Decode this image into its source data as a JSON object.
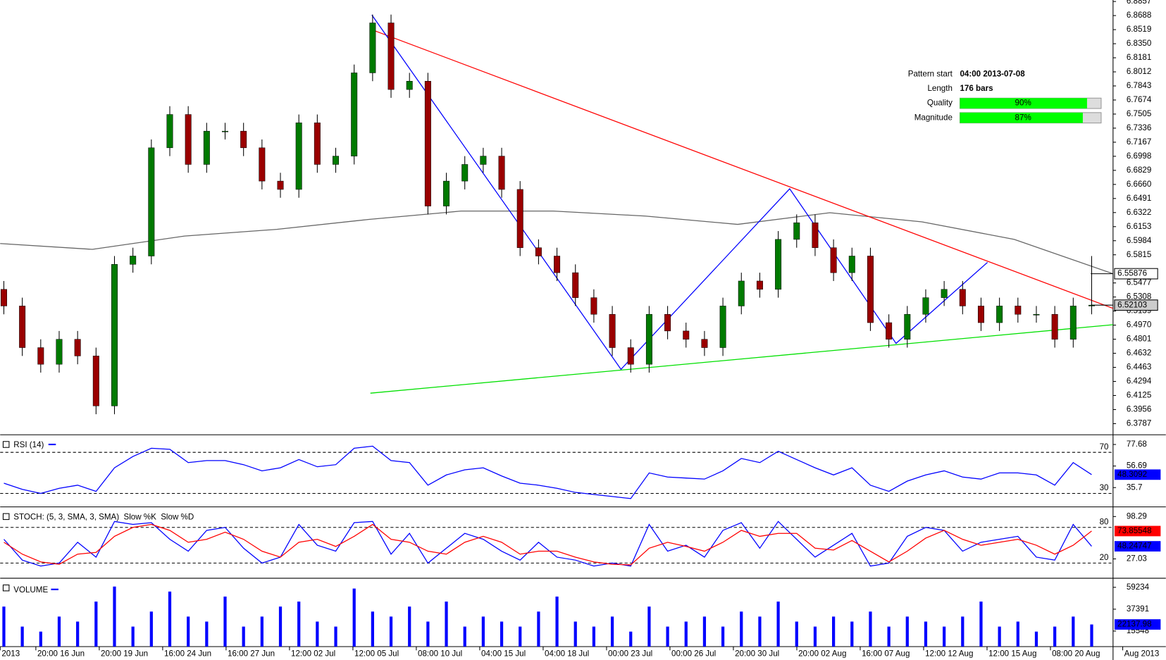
{
  "chart_data": [
    {
      "type": "candlestick",
      "xlim": [
        -0.2,
        60.16
      ],
      "ylim": [
        6.3653,
        6.8875
      ],
      "yticks": [
        6.8857,
        6.8688,
        6.8519,
        {
          "value": 6.835,
          "label": "6.8350"
        },
        6.8181,
        6.8012,
        6.7843,
        6.7674,
        6.7505,
        6.7336,
        6.7167,
        6.6998,
        6.6829,
        {
          "value": 6.666,
          "label": "6.6660"
        },
        6.6491,
        6.6322,
        6.6153,
        6.5984,
        6.5815,
        6.5477,
        6.5308,
        6.5139,
        {
          "value": 6.497,
          "label": "6.4970"
        },
        6.4801,
        6.4632,
        6.4463,
        6.4294,
        6.4125,
        6.3956,
        6.3787
      ],
      "categories": [
        "2013",
        "20:00 16 Jun",
        "20:00 19 Jun",
        "16:00 24 Jun",
        "16:00 27 Jun",
        "12:00 02 Jul",
        "12:00 05 Jul",
        "08:00 10 Jul",
        "04:00 15 Jul",
        "04:00 18 Jul",
        "00:00 23 Jul",
        "00:00 26 Jul",
        "20:00 30 Jul",
        "20:00 02 Aug",
        "16:00 07 Aug",
        "12:00 12 Aug",
        "12:00 15 Aug",
        "08:00 20 Aug",
        "Aug 2013"
      ],
      "open": [
        6.54,
        6.52,
        6.47,
        6.45,
        6.48,
        6.46,
        6.4,
        6.57,
        6.58,
        6.71,
        6.75,
        6.69,
        6.73,
        6.73,
        6.71,
        6.67,
        6.66,
        6.74,
        6.69,
        6.7,
        6.8,
        6.86,
        6.78,
        6.79,
        6.64,
        6.67,
        6.69,
        6.7,
        6.66,
        6.59,
        6.58,
        6.56,
        6.53,
        6.51,
        6.47,
        6.45,
        6.51,
        6.49,
        6.48,
        6.47,
        6.52,
        6.55,
        6.54,
        6.6,
        6.62,
        6.59,
        6.56,
        6.58,
        6.5,
        6.48,
        6.51,
        6.53,
        6.54,
        6.52,
        6.5,
        6.52,
        6.51,
        6.51,
        6.48,
        6.52
      ],
      "high": [
        6.55,
        6.53,
        6.48,
        6.49,
        6.49,
        6.47,
        6.58,
        6.59,
        6.72,
        6.76,
        6.76,
        6.74,
        6.74,
        6.74,
        6.72,
        6.68,
        6.75,
        6.75,
        6.71,
        6.81,
        6.87,
        6.87,
        6.8,
        6.8,
        6.68,
        6.7,
        6.71,
        6.71,
        6.67,
        6.6,
        6.59,
        6.57,
        6.54,
        6.52,
        6.48,
        6.52,
        6.52,
        6.5,
        6.49,
        6.53,
        6.56,
        6.56,
        6.61,
        6.63,
        6.63,
        6.6,
        6.59,
        6.59,
        6.51,
        6.52,
        6.54,
        6.55,
        6.55,
        6.53,
        6.53,
        6.53,
        6.52,
        6.52,
        6.53,
        6.58
      ],
      "low": [
        6.51,
        6.46,
        6.44,
        6.44,
        6.45,
        6.39,
        6.39,
        6.56,
        6.57,
        6.7,
        6.68,
        6.68,
        6.72,
        6.7,
        6.66,
        6.65,
        6.65,
        6.68,
        6.68,
        6.69,
        6.79,
        6.77,
        6.77,
        6.63,
        6.63,
        6.66,
        6.68,
        6.65,
        6.58,
        6.57,
        6.55,
        6.52,
        6.5,
        6.46,
        6.44,
        6.44,
        6.48,
        6.47,
        6.46,
        6.46,
        6.51,
        6.53,
        6.53,
        6.59,
        6.58,
        6.55,
        6.55,
        6.49,
        6.47,
        6.47,
        6.5,
        6.52,
        6.51,
        6.49,
        6.49,
        6.5,
        6.5,
        6.47,
        6.47,
        6.51
      ],
      "close": [
        6.52,
        6.47,
        6.45,
        6.48,
        6.46,
        6.4,
        6.57,
        6.58,
        6.71,
        6.75,
        6.69,
        6.73,
        6.73,
        6.71,
        6.67,
        6.66,
        6.74,
        6.69,
        6.7,
        6.8,
        6.86,
        6.78,
        6.79,
        6.64,
        6.67,
        6.69,
        6.7,
        6.66,
        6.59,
        6.58,
        6.56,
        6.53,
        6.51,
        6.47,
        6.45,
        6.51,
        6.49,
        6.48,
        6.47,
        6.52,
        6.55,
        6.54,
        6.6,
        6.62,
        6.59,
        6.56,
        6.58,
        6.5,
        6.48,
        6.51,
        6.53,
        6.54,
        6.52,
        6.5,
        6.52,
        6.51,
        6.51,
        6.48,
        6.52,
        6.52103
      ],
      "up_color": "#007a00",
      "down_color": "#9a0000",
      "ma": {
        "color": "#666666",
        "x": [
          -0.2,
          4.8,
          9.8,
          14.8,
          19.8,
          24.8,
          29.8,
          34.8,
          39.8,
          44.8,
          49.8,
          54.8,
          60.16
        ],
        "values": [
          6.595,
          6.588,
          6.604,
          6.612,
          6.624,
          6.634,
          6.634,
          6.628,
          6.618,
          6.632,
          6.621,
          6.6,
          6.55876
        ]
      },
      "trend_lines": [
        {
          "color": "#ff0000",
          "x": [
            19.96,
            60.16
          ],
          "values": [
            6.8518,
            6.5171
          ]
        },
        {
          "color": "#00e000",
          "x": [
            19.88,
            60.16
          ],
          "values": [
            6.4153,
            6.4975
          ]
        },
        {
          "color": "#0000ff",
          "x": [
            19.96,
            33.47,
            42.62,
            48.39,
            53.35
          ],
          "values": [
            6.8696,
            6.4439,
            6.6608,
            6.4751,
            6.5724
          ]
        }
      ],
      "pattern": [
        {
          "label": "Pattern start",
          "value": "04:00 2013-07-08"
        },
        {
          "label": "Length",
          "value": "176 bars"
        },
        {
          "label": "Quality",
          "value": 90,
          "value_label": "90%"
        },
        {
          "label": "Magnitude",
          "value": 87,
          "value_label": "87%"
        }
      ]
    },
    {
      "type": "line",
      "title": "RSI (14)",
      "ylim": [
        16.9,
        87.1
      ],
      "yticks": [
        77.68,
        56.69,
        35.7
      ],
      "levels": [
        70,
        30
      ],
      "series": [
        {
          "color": "#0000ff",
          "values": [
            40,
            34,
            30,
            35,
            38,
            32,
            55,
            66,
            74,
            73,
            60,
            62,
            62,
            58,
            52,
            55,
            63,
            56,
            58,
            74,
            76,
            62,
            60,
            38,
            48,
            53,
            55,
            47,
            40,
            38,
            35,
            31,
            29,
            27,
            25,
            50,
            46,
            45,
            44,
            52,
            64,
            60,
            71,
            63,
            55,
            48,
            55,
            38,
            32,
            42,
            48,
            52,
            46,
            44,
            50,
            50,
            48,
            38,
            60,
            48.3092
          ]
        }
      ]
    },
    {
      "type": "line",
      "title": "STOCH: (5, 3, SMA, 3, SMA)",
      "ylim": [
        -5.5,
        114.5
      ],
      "yticks": [
        98.29,
        27.03
      ],
      "levels": [
        80,
        20
      ],
      "series": [
        {
          "name": "Slow %K",
          "color": "#0000ff",
          "values": [
            60,
            25,
            15,
            20,
            55,
            30,
            90,
            85,
            88,
            60,
            40,
            75,
            80,
            45,
            20,
            30,
            85,
            50,
            40,
            88,
            90,
            35,
            70,
            20,
            45,
            70,
            60,
            40,
            25,
            55,
            30,
            25,
            15,
            20,
            15,
            85,
            40,
            50,
            30,
            75,
            88,
            45,
            90,
            60,
            30,
            50,
            70,
            15,
            20,
            65,
            80,
            75,
            40,
            55,
            60,
            65,
            30,
            25,
            85,
            48.24747
          ]
        },
        {
          "name": "Slow %D",
          "color": "#ff0000",
          "values": [
            55,
            35,
            22,
            18,
            35,
            38,
            65,
            80,
            85,
            75,
            55,
            60,
            72,
            60,
            40,
            30,
            55,
            60,
            48,
            65,
            85,
            60,
            55,
            40,
            35,
            55,
            65,
            55,
            35,
            40,
            40,
            30,
            22,
            18,
            17,
            45,
            55,
            48,
            40,
            55,
            75,
            65,
            70,
            70,
            45,
            42,
            58,
            40,
            22,
            40,
            62,
            75,
            60,
            50,
            55,
            60,
            50,
            35,
            50,
            73.85548
          ]
        }
      ]
    },
    {
      "type": "volume",
      "title": "VOLUME",
      "ylim": [
        0,
        68300
      ],
      "yticks": [
        59234,
        37391,
        15548
      ],
      "color": "#0000ff",
      "values": [
        40000,
        20000,
        15000,
        30000,
        25000,
        45000,
        60000,
        20000,
        35000,
        55000,
        30000,
        25000,
        50000,
        20000,
        30000,
        40000,
        45000,
        25000,
        20000,
        58000,
        35000,
        30000,
        40000,
        25000,
        45000,
        20000,
        30000,
        25000,
        20000,
        35000,
        50000,
        25000,
        20000,
        30000,
        15000,
        40000,
        20000,
        25000,
        30000,
        20000,
        35000,
        30000,
        45000,
        25000,
        20000,
        30000,
        25000,
        35000,
        20000,
        30000,
        25000,
        20000,
        30000,
        45000,
        20000,
        25000,
        15000,
        20000,
        30000,
        22137.98
      ]
    }
  ]
}
